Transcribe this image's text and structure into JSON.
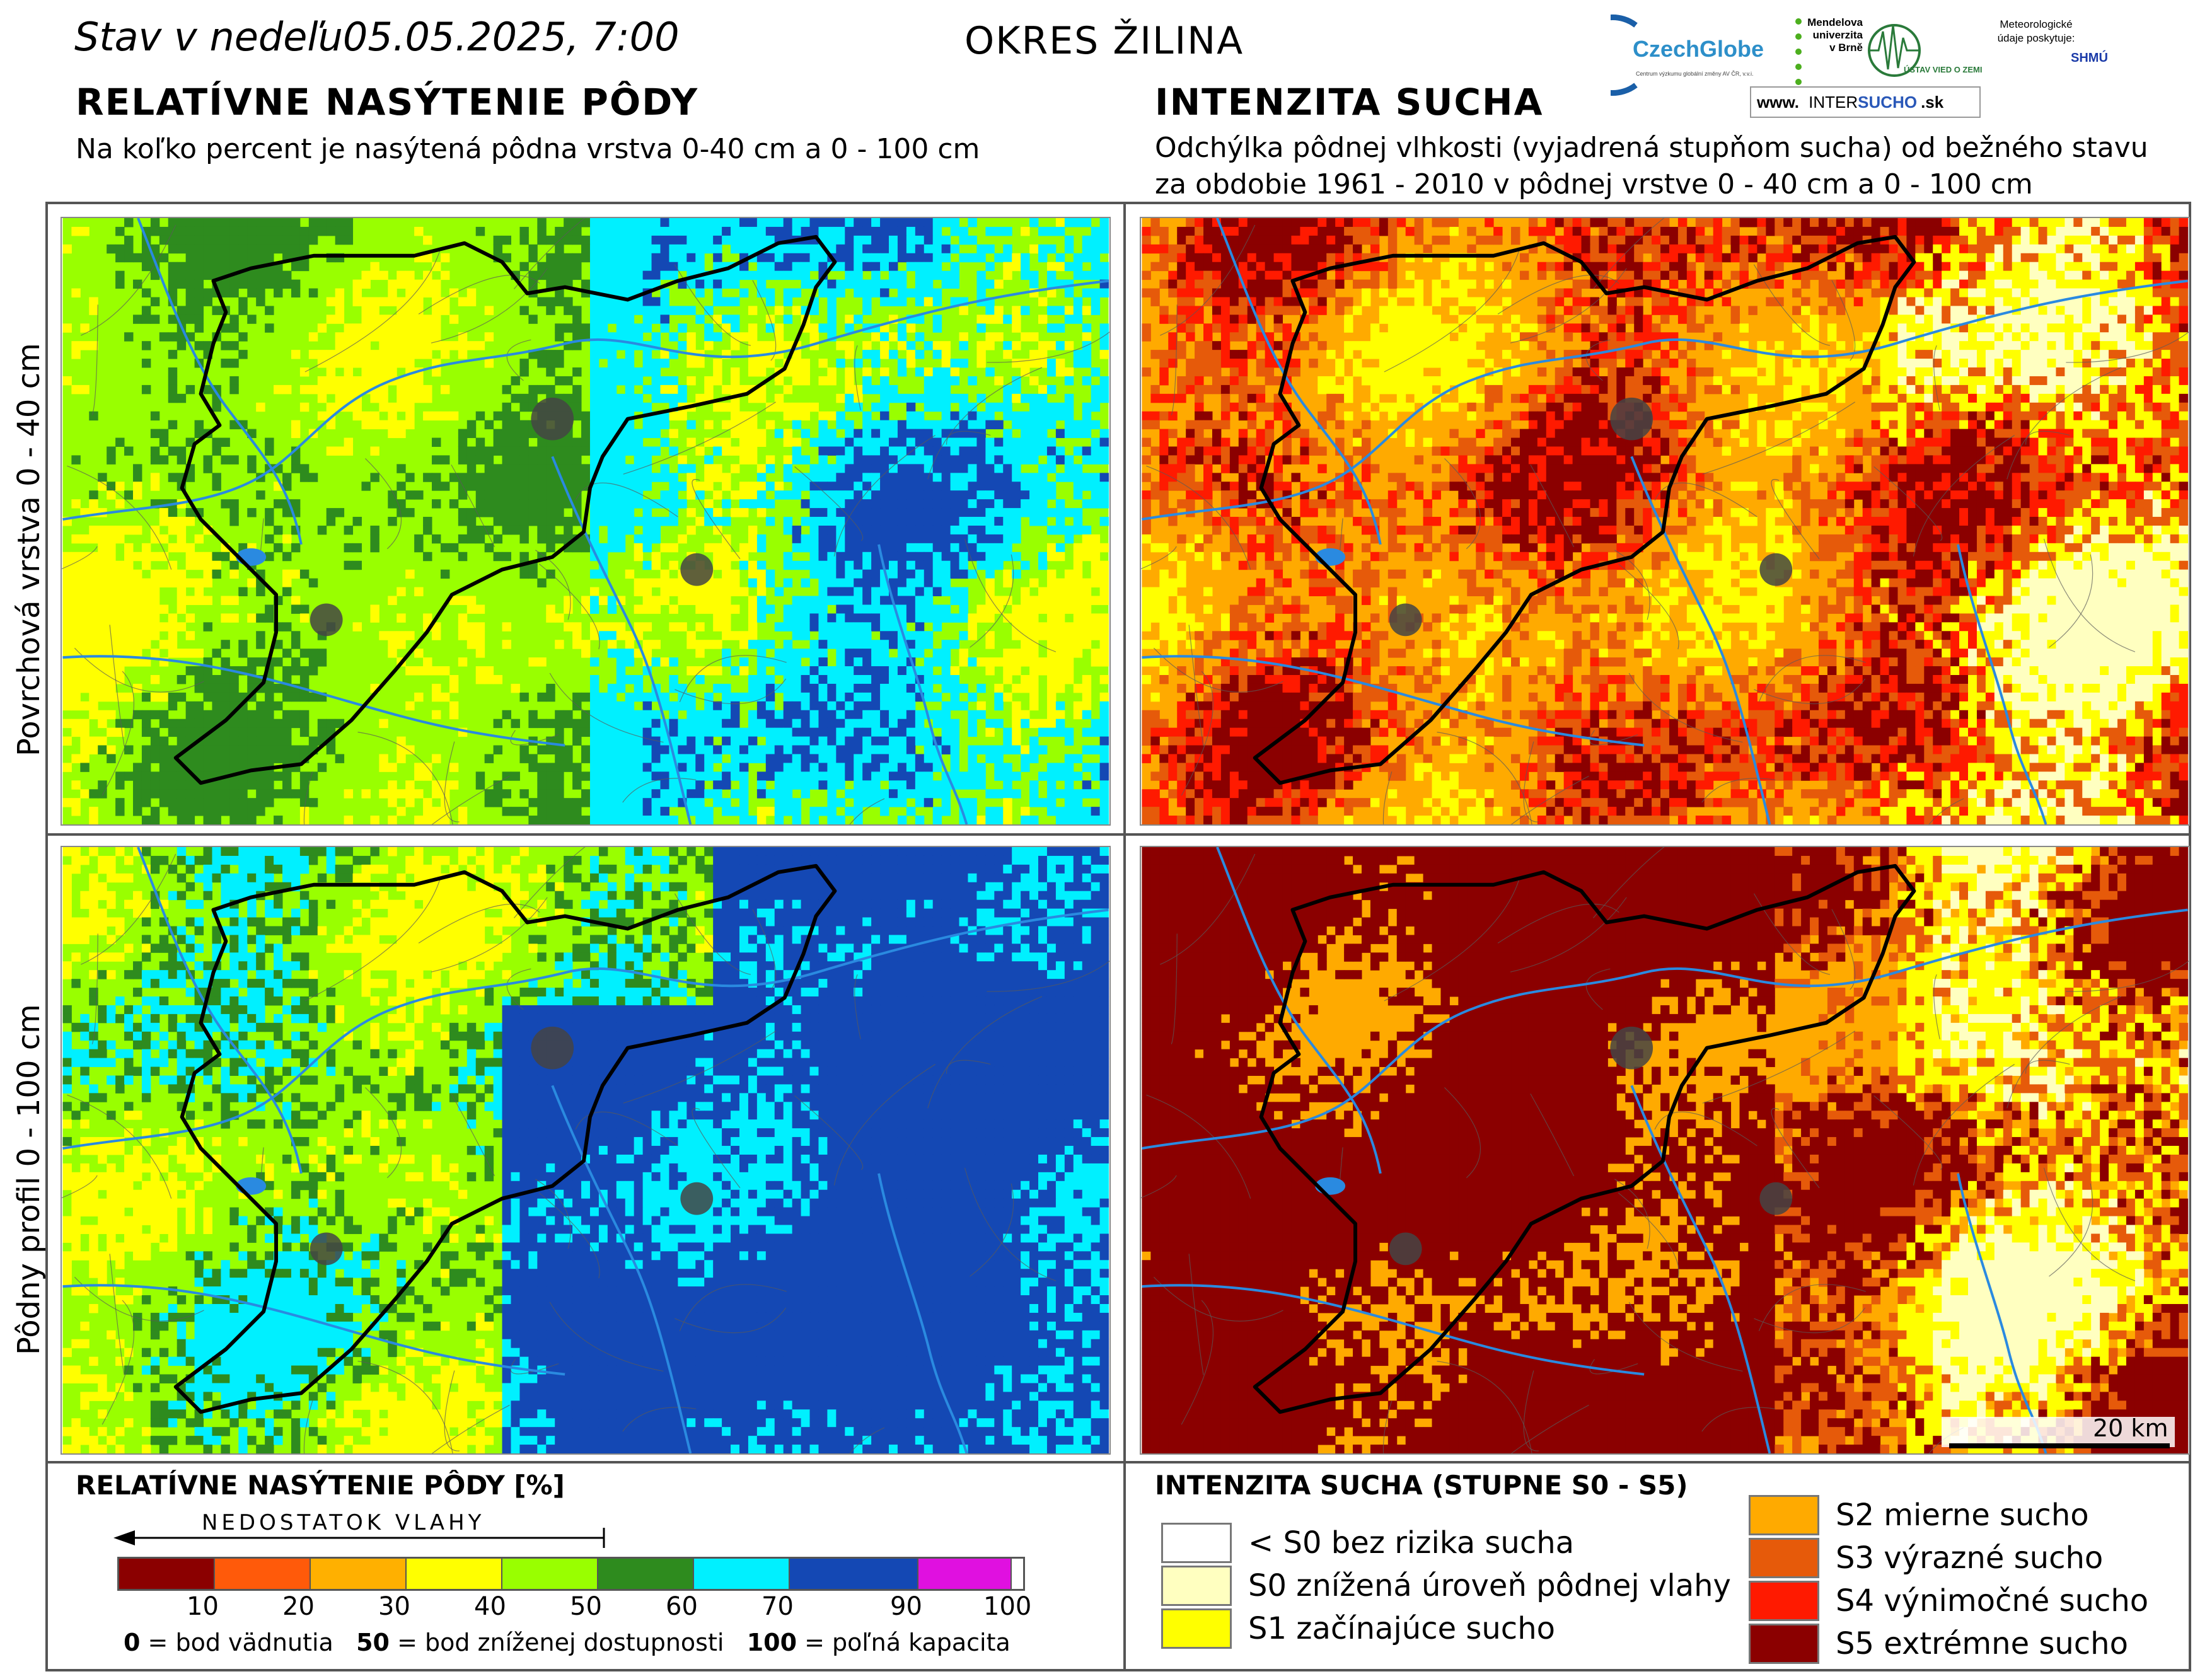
{
  "header": {
    "date_prefix": "Stav v nedeľu",
    "date_value": "05.05.2025, 7:00",
    "district": "OKRES  ŽILINA"
  },
  "logos": {
    "czechglobe": "CzechGlobe",
    "czechglobe_sub": "Centrum výzkumu globální změny AV ČR, v.v.i.",
    "mendel": "Mendelova univerzita v Brně",
    "uvz": "ÚSTAV VIED O ZEMI",
    "meteo": "Meteorologické údaje poskytuje:",
    "shmu": "SHMÚ",
    "intersucho_prefix": "www.",
    "intersucho_a": "INTER",
    "intersucho_b": "SUCHO",
    "intersucho_suffix": ".sk"
  },
  "left_section": {
    "title": "RELATÍVNE NASÝTENIE PÔDY",
    "subtitle": "Na koľko percent je nasýtená pôdna vrstva 0-40 cm a 0 - 100 cm"
  },
  "right_section": {
    "title": "INTENZITA SUCHA",
    "subtitle_line1": "Odchýlka pôdnej vlhkosti (vyjadrená stupňom sucha) od bežného stavu",
    "subtitle_line2": "za obdobie 1961 - 2010 v pôdnej vrstve 0 - 40 cm a 0 - 100 cm"
  },
  "rows": {
    "top": "Povrchová vrstva 0 - 40 cm",
    "bottom": "Pôdny profil 0 - 100 cm"
  },
  "scalebar": {
    "label": "20 km"
  },
  "saturation_legend": {
    "title": "RELATÍVNE NASÝTENIE PÔDY [%]",
    "arrow_label": "NEDOSTATOK VLAHY",
    "classes": [
      {
        "upper": "10",
        "color": "#8b0000"
      },
      {
        "upper": "20",
        "color": "#ff5a0a"
      },
      {
        "upper": "30",
        "color": "#ffb000"
      },
      {
        "upper": "40",
        "color": "#ffff00"
      },
      {
        "upper": "50",
        "color": "#99ff00"
      },
      {
        "upper": "60",
        "color": "#2e8b1e"
      },
      {
        "upper": "70",
        "color": "#00f0ff"
      },
      {
        "upper": "90",
        "color": "#1448b4"
      },
      {
        "upper": "100",
        "color": "#e010e0"
      }
    ],
    "note_a_num": "0",
    "note_a_text": "= bod vädnutia",
    "note_b_num": "50",
    "note_b_text": "= bod zníženej dostupnosti",
    "note_c_num": "100",
    "note_c_text": "= poľná kapacita"
  },
  "drought_legend": {
    "title": "INTENZITA SUCHA (STUPNE S0 - S5)",
    "items": [
      {
        "label": "< S0 bez rizika sucha",
        "color": "#ffffff"
      },
      {
        "label": "S0 znížená úroveň pôdnej vlahy",
        "color": "#ffffc0"
      },
      {
        "label": "S1 začínajúce sucho",
        "color": "#ffff00"
      },
      {
        "label": "S2 mierne sucho",
        "color": "#ffaa00"
      },
      {
        "label": "S3 výrazné sucho",
        "color": "#e65a0a"
      },
      {
        "label": "S4 výnimočné sucho",
        "color": "#ff1a00"
      },
      {
        "label": "S5 extrémne sucho",
        "color": "#8b0000"
      }
    ]
  },
  "maps": {
    "palette_saturation": [
      "#99ff00",
      "#2e8b1e",
      "#ffff00",
      "#00f0ff",
      "#1448b4"
    ],
    "palette_drought": [
      "#ffaa00",
      "#e65a0a",
      "#ff1a00",
      "#8b0000",
      "#ffff00",
      "#ffffc0"
    ],
    "district_color": "#000000",
    "river_color": "#2a8ae0"
  }
}
